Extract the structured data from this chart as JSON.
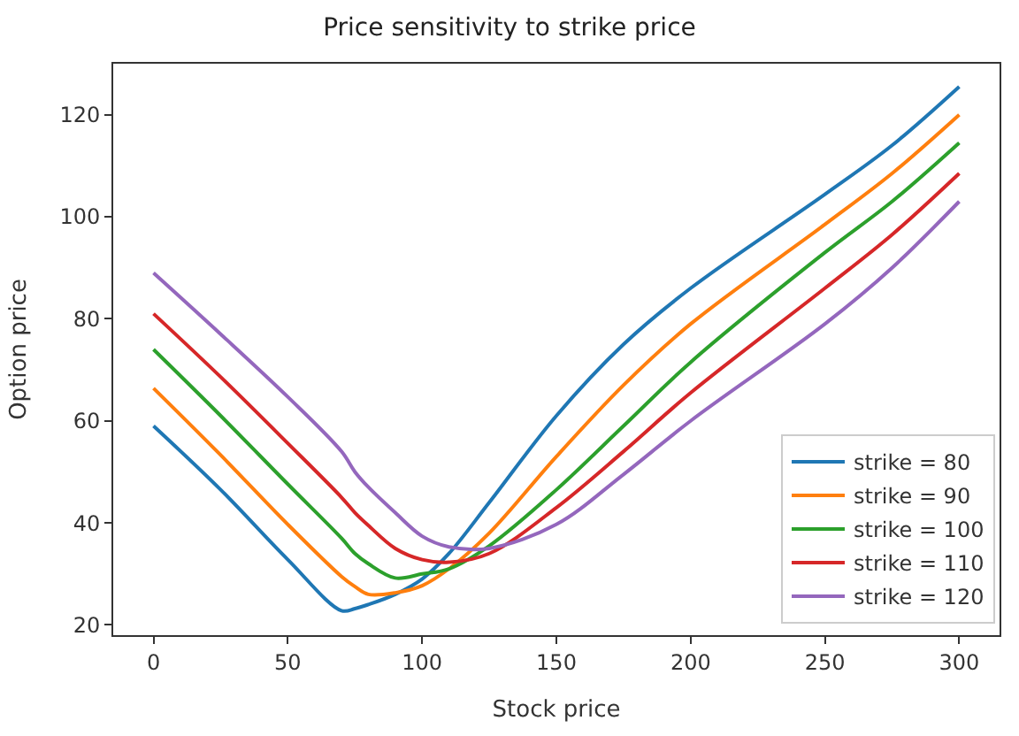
{
  "chart_data": {
    "type": "line",
    "title": "Price sensitivity to strike price",
    "xlabel": "Stock price",
    "ylabel": "Option price",
    "x": [
      0,
      25,
      50,
      70,
      75,
      80,
      90,
      100,
      110,
      125,
      150,
      175,
      200,
      250,
      275,
      300
    ],
    "series": [
      {
        "name": "strike = 80",
        "color": "#1f77b4",
        "values": [
          59,
          46.5,
          32.8,
          22.8,
          23.2,
          24,
          26,
          29,
          34,
          44,
          61,
          75,
          86,
          104.4,
          114,
          125.5
        ]
      },
      {
        "name": "strike = 90",
        "color": "#ff7f0e",
        "values": [
          66.4,
          53.3,
          39.7,
          29.5,
          27.5,
          26,
          26.3,
          27.7,
          31,
          38,
          53,
          67,
          79,
          98.5,
          108.5,
          120
        ]
      },
      {
        "name": "strike = 100",
        "color": "#2ca02c",
        "values": [
          74,
          61,
          47.6,
          37,
          34,
          32,
          29.2,
          30,
          31,
          35.5,
          46.5,
          59,
          71.5,
          93,
          103,
          114.5
        ]
      },
      {
        "name": "strike = 110",
        "color": "#d62728",
        "values": [
          81,
          68.6,
          55.6,
          45,
          42,
          39.5,
          35,
          32.8,
          32.3,
          34,
          43,
          54,
          65.5,
          86,
          96.5,
          108.5
        ]
      },
      {
        "name": "strike = 120",
        "color": "#9467bd",
        "values": [
          89,
          77,
          64.7,
          54,
          50,
          47,
          42,
          37.4,
          35.3,
          35,
          39.7,
          49.5,
          60,
          79,
          90,
          103
        ]
      }
    ],
    "xlim": [
      -15,
      315
    ],
    "ylim": [
      18,
      130
    ],
    "xticks": [
      0,
      50,
      100,
      150,
      200,
      250,
      300
    ],
    "yticks": [
      20,
      40,
      60,
      80,
      100,
      120
    ],
    "legend": "bottom right",
    "marker": "none",
    "line_style": "solid"
  }
}
